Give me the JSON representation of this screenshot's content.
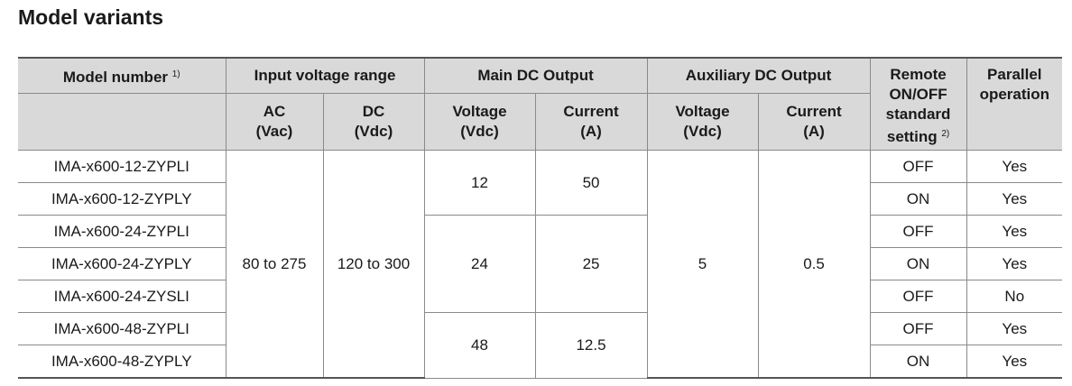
{
  "title": "Model variants",
  "table": {
    "header": {
      "row1": [
        "Model number",
        "Input voltage range",
        "Main DC Output",
        "Auxiliary DC Output",
        "Remote ON/OFF standard setting",
        "Parallel operation"
      ],
      "model_note": "1)",
      "remote_note": "2)",
      "row2": [
        [
          "AC",
          "(Vac)"
        ],
        [
          "DC",
          "(Vdc)"
        ],
        [
          "Voltage",
          "(Vdc)"
        ],
        [
          "Current",
          "(A)"
        ],
        [
          "Voltage",
          "(Vdc)"
        ],
        [
          "Current",
          "(A)"
        ]
      ]
    },
    "rows": [
      [
        "IMA-x600-12-ZYPLI",
        "OFF",
        "Yes"
      ],
      [
        "IMA-x600-12-ZYPLY",
        "ON",
        "Yes"
      ],
      [
        "IMA-x600-24-ZYPLI",
        "OFF",
        "Yes"
      ],
      [
        "IMA-x600-24-ZYPLY",
        "ON",
        "Yes"
      ],
      [
        "IMA-x600-24-ZYSLI",
        "OFF",
        "No"
      ],
      [
        "IMA-x600-48-ZYPLI",
        "OFF",
        "Yes"
      ],
      [
        "IMA-x600-48-ZYPLY",
        "ON",
        "Yes"
      ]
    ],
    "input_ac": "80 to 275",
    "input_dc": "120 to 300",
    "main": [
      {
        "voltage": 12,
        "current": 50
      },
      {
        "voltage": 24,
        "current": 25
      },
      {
        "voltage": 48,
        "current": 12.5
      }
    ],
    "aux_voltage": 5,
    "aux_current": 0.5
  }
}
